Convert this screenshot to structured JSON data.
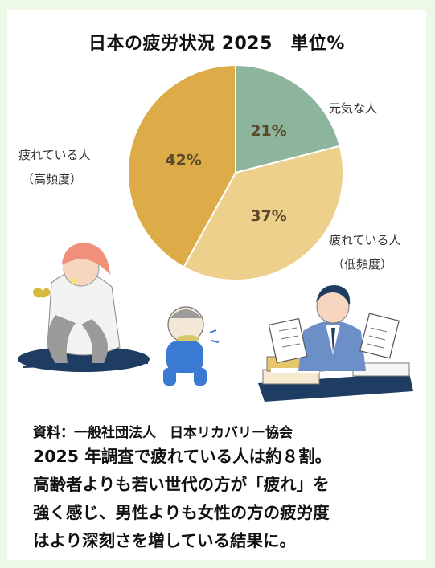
{
  "title": "日本の疲労状況 2025　単位%",
  "chart_data": {
    "type": "pie",
    "title": "日本の疲労状況 2025　単位%",
    "categories": [
      "元気な人",
      "疲れている人（低頻度）",
      "疲れている人（高頻度）"
    ],
    "values": [
      21,
      37,
      42
    ],
    "value_labels": [
      "21%",
      "37%",
      "42%"
    ],
    "label_lines": [
      [
        "元気な人"
      ],
      [
        "疲れている人",
        "（低頻度）"
      ],
      [
        "疲れている人",
        "（高頻度）"
      ]
    ],
    "colors": [
      "#8db49d",
      "#ecd08c",
      "#ddab47"
    ]
  },
  "source": "資料：一般社団法人　日本リカバリー協会",
  "notes": [
    "2025 年調査で疲れている人は約８割。",
    "高齢者よりも若い世代の方が「疲れ」を",
    "強く感じ、男性よりも女性の方の疲労度",
    "はより深刻さを増している結果に。"
  ]
}
